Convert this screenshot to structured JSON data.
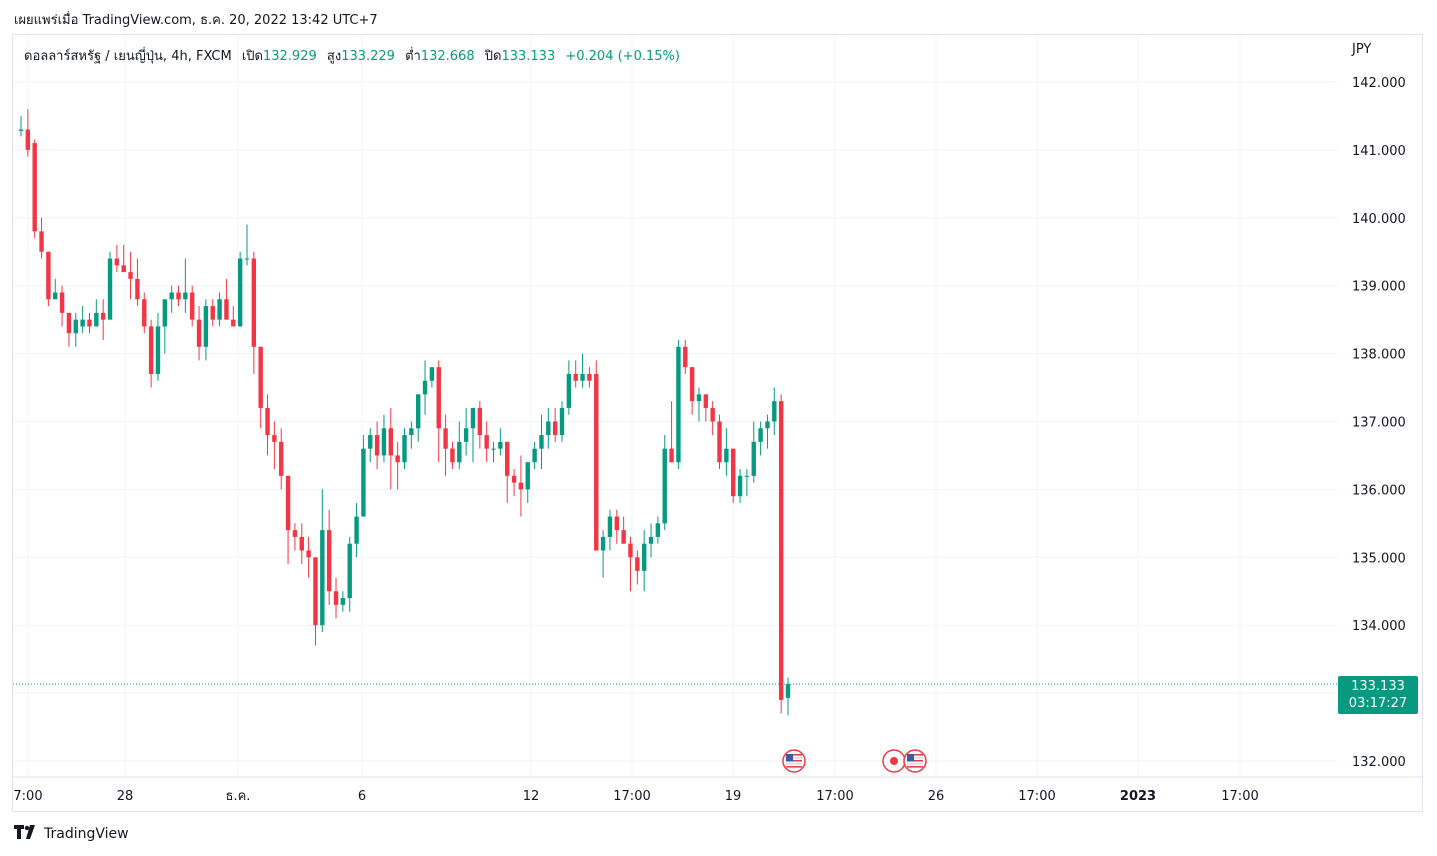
{
  "header": {
    "published": "เผยแพร่เมื่อ TradingView.com, ธ.ค. 20, 2022 13:42 UTC+7"
  },
  "legend": {
    "symbol": "ดอลลาร์สหรัฐ / เยนญี่ปุ่น, 4h, FXCM",
    "open_label": "เปิด",
    "open_value": "132.929",
    "high_label": "สูง",
    "high_value": "133.229",
    "low_label": "ต่ำ",
    "low_value": "132.668",
    "close_label": "ปิด",
    "close_value": "133.133",
    "change": "+0.204 (+0.15%)"
  },
  "currency": "JPY",
  "price_tag": {
    "price": "133.133",
    "countdown": "03:17:27"
  },
  "brand": {
    "name": "TradingView"
  },
  "colors": {
    "up": "#089981",
    "down": "#f23645",
    "grid": "#f0f3fa",
    "axis_text": "#131722"
  },
  "chart_data": {
    "type": "candlestick",
    "title": "",
    "ylabel": "JPY",
    "ylim": [
      131.7,
      143.0
    ],
    "yticks": [
      "132.000",
      "133.000",
      "134.000",
      "135.000",
      "136.000",
      "137.000",
      "138.000",
      "139.000",
      "140.000",
      "141.000",
      "142.000"
    ],
    "xticks": [
      {
        "label": "7:00",
        "bold": false
      },
      {
        "label": "28",
        "bold": false
      },
      {
        "label": "ธ.ค.",
        "bold": false
      },
      {
        "label": "6",
        "bold": false
      },
      {
        "label": "12",
        "bold": false
      },
      {
        "label": "17:00",
        "bold": false
      },
      {
        "label": "19",
        "bold": false
      },
      {
        "label": "17:00",
        "bold": false
      },
      {
        "label": "26",
        "bold": false
      },
      {
        "label": "17:00",
        "bold": false
      },
      {
        "label": "2023",
        "bold": true
      },
      {
        "label": "17:00",
        "bold": false
      }
    ],
    "last_price": 133.133,
    "events": [
      "us-flag-icon",
      "us-flag-icon",
      "us-flag-icon"
    ],
    "ohlc": [
      [
        141.28,
        141.5,
        141.2,
        141.3
      ],
      [
        141.3,
        141.6,
        140.9,
        141.0
      ],
      [
        141.1,
        141.15,
        139.7,
        139.8
      ],
      [
        139.8,
        140.0,
        139.4,
        139.5
      ],
      [
        139.5,
        139.5,
        138.7,
        138.8
      ],
      [
        138.8,
        139.1,
        138.8,
        138.9
      ],
      [
        138.9,
        139.0,
        138.4,
        138.6
      ],
      [
        138.6,
        138.6,
        138.1,
        138.3
      ],
      [
        138.3,
        138.6,
        138.1,
        138.5
      ],
      [
        138.4,
        138.7,
        138.3,
        138.5
      ],
      [
        138.5,
        138.6,
        138.3,
        138.4
      ],
      [
        138.4,
        138.8,
        138.4,
        138.6
      ],
      [
        138.6,
        138.8,
        138.2,
        138.5
      ],
      [
        138.5,
        139.5,
        138.5,
        139.4
      ],
      [
        139.4,
        139.6,
        139.2,
        139.3
      ],
      [
        139.3,
        139.6,
        139.2,
        139.2
      ],
      [
        139.2,
        139.5,
        138.8,
        139.1
      ],
      [
        139.1,
        139.4,
        138.7,
        138.8
      ],
      [
        138.8,
        138.9,
        138.3,
        138.4
      ],
      [
        138.4,
        138.5,
        137.5,
        137.7
      ],
      [
        137.7,
        138.6,
        137.6,
        138.4
      ],
      [
        138.4,
        138.7,
        138.0,
        138.8
      ],
      [
        138.8,
        139.0,
        138.6,
        138.9
      ],
      [
        138.9,
        139.0,
        138.7,
        138.8
      ],
      [
        138.8,
        139.4,
        138.6,
        138.9
      ],
      [
        138.9,
        139.0,
        138.4,
        138.5
      ],
      [
        138.5,
        138.7,
        137.9,
        138.1
      ],
      [
        138.1,
        138.8,
        137.9,
        138.7
      ],
      [
        138.7,
        138.8,
        138.4,
        138.5
      ],
      [
        138.5,
        138.9,
        138.4,
        138.8
      ],
      [
        138.8,
        139.1,
        138.5,
        138.5
      ],
      [
        138.5,
        138.7,
        138.4,
        138.4
      ],
      [
        138.4,
        139.5,
        138.4,
        139.4
      ],
      [
        139.4,
        139.9,
        139.3,
        139.4
      ],
      [
        139.4,
        139.5,
        137.7,
        138.1
      ],
      [
        138.1,
        138.1,
        136.9,
        137.2
      ],
      [
        137.2,
        137.4,
        136.5,
        136.8
      ],
      [
        136.8,
        137.0,
        136.3,
        136.7
      ],
      [
        136.7,
        136.9,
        136.0,
        136.2
      ],
      [
        136.2,
        136.2,
        134.9,
        135.4
      ],
      [
        135.4,
        135.5,
        135.1,
        135.3
      ],
      [
        135.3,
        135.5,
        134.9,
        135.1
      ],
      [
        135.1,
        135.3,
        134.7,
        135.0
      ],
      [
        135.0,
        135.0,
        133.7,
        134.0
      ],
      [
        134.0,
        136.0,
        133.9,
        135.4
      ],
      [
        135.4,
        135.7,
        134.3,
        134.5
      ],
      [
        134.5,
        134.7,
        134.1,
        134.3
      ],
      [
        134.3,
        134.5,
        134.2,
        134.4
      ],
      [
        134.4,
        135.3,
        134.2,
        135.2
      ],
      [
        135.2,
        135.8,
        135.0,
        135.6
      ],
      [
        135.6,
        136.8,
        135.6,
        136.6
      ],
      [
        136.6,
        136.9,
        136.4,
        136.8
      ],
      [
        136.8,
        137.0,
        136.3,
        136.5
      ],
      [
        136.5,
        137.1,
        136.4,
        136.9
      ],
      [
        136.9,
        137.2,
        136.0,
        136.5
      ],
      [
        136.5,
        136.7,
        136.0,
        136.4
      ],
      [
        136.4,
        136.9,
        136.3,
        136.8
      ],
      [
        136.8,
        137.0,
        136.6,
        136.9
      ],
      [
        136.9,
        137.4,
        136.7,
        137.4
      ],
      [
        137.4,
        137.9,
        137.1,
        137.6
      ],
      [
        137.6,
        137.8,
        137.5,
        137.8
      ],
      [
        137.8,
        137.9,
        136.4,
        136.9
      ],
      [
        136.9,
        137.1,
        136.2,
        136.6
      ],
      [
        136.6,
        136.7,
        136.3,
        136.4
      ],
      [
        136.4,
        137.0,
        136.3,
        136.7
      ],
      [
        136.7,
        137.2,
        136.5,
        136.9
      ],
      [
        136.9,
        137.1,
        136.4,
        137.2
      ],
      [
        137.2,
        137.3,
        136.6,
        136.8
      ],
      [
        136.8,
        137.0,
        136.4,
        136.6
      ],
      [
        136.6,
        136.7,
        136.4,
        136.6
      ],
      [
        136.6,
        136.9,
        136.5,
        136.7
      ],
      [
        136.7,
        136.7,
        135.8,
        136.2
      ],
      [
        136.2,
        136.3,
        135.9,
        136.1
      ],
      [
        136.1,
        136.5,
        135.6,
        136.0
      ],
      [
        136.0,
        136.4,
        135.8,
        136.4
      ],
      [
        136.4,
        136.7,
        136.3,
        136.6
      ],
      [
        136.6,
        137.1,
        136.3,
        136.8
      ],
      [
        136.8,
        137.2,
        136.6,
        137.0
      ],
      [
        137.0,
        137.2,
        136.7,
        136.8
      ],
      [
        136.8,
        137.3,
        136.7,
        137.2
      ],
      [
        137.2,
        137.9,
        137.1,
        137.7
      ],
      [
        137.7,
        137.9,
        137.5,
        137.6
      ],
      [
        137.6,
        138.0,
        137.5,
        137.7
      ],
      [
        137.7,
        137.8,
        137.5,
        137.6
      ],
      [
        137.7,
        137.9,
        135.1,
        135.1
      ],
      [
        135.1,
        135.4,
        134.7,
        135.3
      ],
      [
        135.3,
        135.7,
        135.1,
        135.6
      ],
      [
        135.6,
        135.7,
        135.2,
        135.4
      ],
      [
        135.4,
        135.6,
        135.2,
        135.2
      ],
      [
        135.2,
        135.3,
        134.5,
        135.0
      ],
      [
        135.0,
        135.1,
        134.6,
        134.8
      ],
      [
        134.8,
        135.4,
        134.5,
        135.2
      ],
      [
        135.2,
        135.5,
        135.0,
        135.3
      ],
      [
        135.3,
        135.6,
        135.2,
        135.5
      ],
      [
        135.5,
        136.8,
        135.4,
        136.6
      ],
      [
        136.6,
        137.3,
        136.4,
        136.4
      ],
      [
        136.4,
        138.2,
        136.3,
        138.1
      ],
      [
        138.1,
        138.2,
        137.7,
        137.8
      ],
      [
        137.8,
        137.8,
        137.1,
        137.3
      ],
      [
        137.3,
        137.5,
        137.0,
        137.4
      ],
      [
        137.4,
        137.4,
        137.0,
        137.2
      ],
      [
        137.2,
        137.3,
        136.8,
        137.0
      ],
      [
        137.0,
        137.1,
        136.3,
        136.4
      ],
      [
        136.4,
        136.9,
        136.2,
        136.6
      ],
      [
        136.6,
        136.6,
        135.8,
        135.9
      ],
      [
        135.9,
        136.3,
        135.8,
        136.2
      ],
      [
        136.2,
        136.3,
        135.9,
        136.2
      ],
      [
        136.2,
        137.0,
        136.1,
        136.7
      ],
      [
        136.7,
        137.0,
        136.5,
        136.9
      ],
      [
        136.9,
        137.1,
        136.6,
        137.0
      ],
      [
        137.0,
        137.5,
        136.8,
        137.3
      ],
      [
        137.3,
        137.4,
        132.7,
        132.9
      ],
      [
        132.93,
        133.23,
        132.67,
        133.133
      ]
    ]
  }
}
